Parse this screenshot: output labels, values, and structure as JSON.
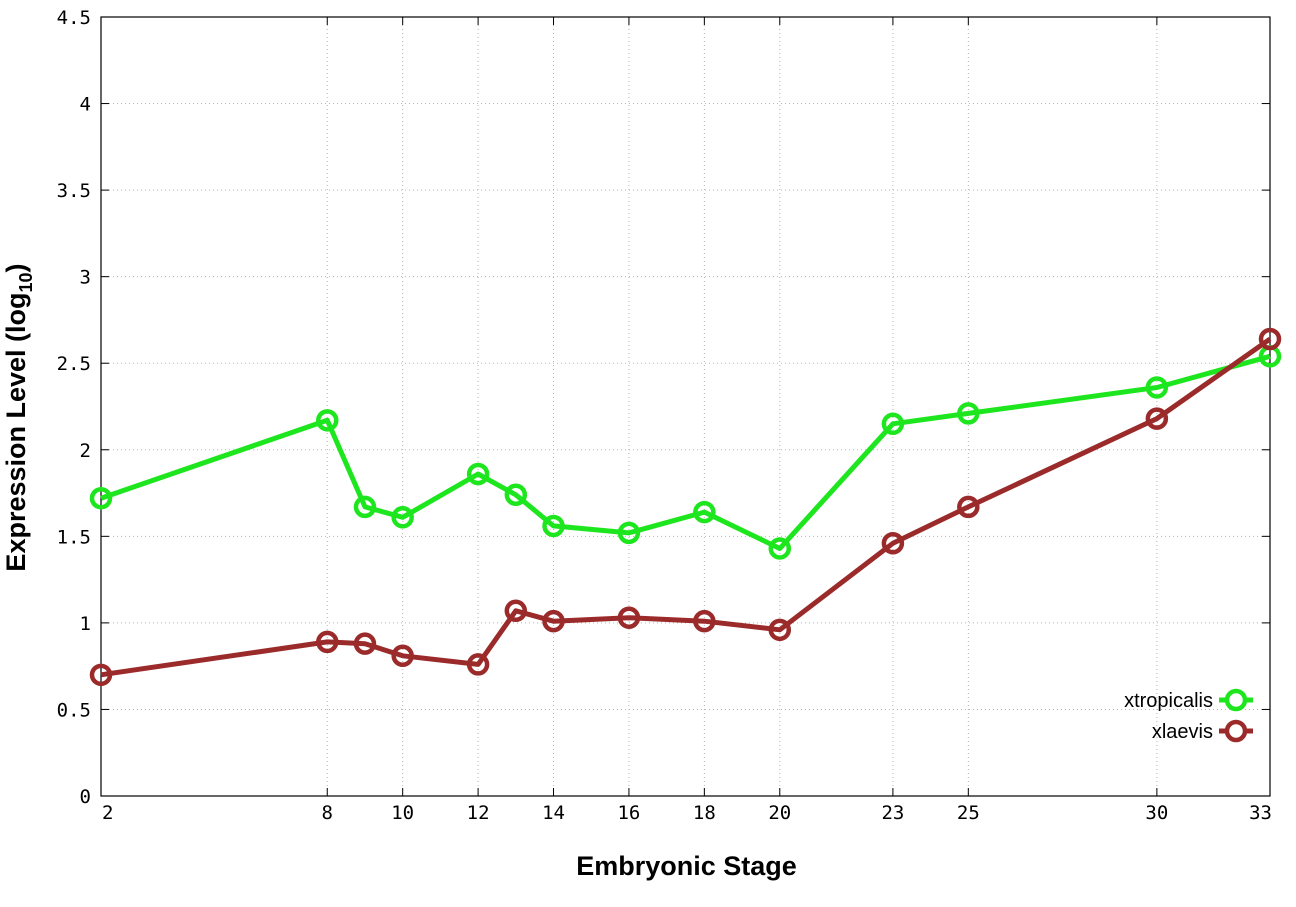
{
  "chart_data": {
    "type": "line",
    "xlabel": "Embryonic Stage",
    "ylabel": "Expression Level (log",
    "ylabel_sub": "10",
    "ylabel_close": ")",
    "xlim": [
      2,
      33
    ],
    "ylim": [
      0,
      4.5
    ],
    "x_ticks": [
      2,
      8,
      10,
      12,
      14,
      16,
      18,
      20,
      23,
      25,
      30,
      33
    ],
    "y_ticks": [
      0,
      0.5,
      1,
      1.5,
      2,
      2.5,
      3,
      3.5,
      4,
      4.5
    ],
    "grid": true,
    "legend_position": "bottom-right",
    "x": [
      2,
      8,
      9,
      10,
      12,
      13,
      14,
      16,
      18,
      20,
      23,
      25,
      30,
      33
    ],
    "series": [
      {
        "name": "xtropicalis",
        "color": "#1ee61e",
        "values": [
          1.72,
          2.17,
          1.67,
          1.61,
          1.86,
          1.74,
          1.56,
          1.52,
          1.64,
          1.43,
          2.15,
          2.21,
          2.36,
          2.54
        ]
      },
      {
        "name": "xlaevis",
        "color": "#9b2b2b",
        "values": [
          0.7,
          0.89,
          0.88,
          0.81,
          0.76,
          1.07,
          1.01,
          1.03,
          1.01,
          0.96,
          1.46,
          1.67,
          2.18,
          2.64
        ]
      }
    ]
  }
}
